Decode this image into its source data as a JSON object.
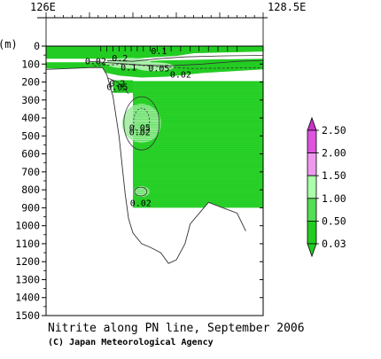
{
  "chart_data": {
    "type": "contour-section",
    "title": "Nitrite along PN line, September 2006",
    "credit": "(C) Japan Meteorological Agency",
    "x_range_labels": [
      "126E",
      "128.5E"
    ],
    "ylabel": "(m)",
    "ylim": [
      0,
      1500
    ],
    "y_ticks": [
      0,
      100,
      200,
      300,
      400,
      500,
      600,
      700,
      800,
      900,
      1000,
      1100,
      1200,
      1300,
      1400,
      1500
    ],
    "station_ticks_top": [
      126.63,
      126.7,
      126.77,
      126.84,
      126.91,
      126.98,
      127.05,
      127.12,
      127.2,
      127.28,
      127.36,
      127.44,
      127.55,
      127.66,
      127.76,
      127.87,
      127.98,
      128.09,
      128.2
    ],
    "contours": [
      {
        "label": "0.1",
        "x": 127.3,
        "depth": 45
      },
      {
        "label": "0.02",
        "x": 126.57,
        "depth": 100
      },
      {
        "label": "0.1",
        "x": 126.95,
        "depth": 135
      },
      {
        "label": "0.2",
        "x": 126.85,
        "depth": 85
      },
      {
        "label": "0.05",
        "x": 127.3,
        "depth": 140
      },
      {
        "label": "0.02",
        "x": 127.55,
        "depth": 175
      },
      {
        "label": "0.2",
        "x": 126.82,
        "depth": 225
      },
      {
        "label": "0.05",
        "x": 126.82,
        "depth": 245
      },
      {
        "label": "0.05",
        "x": 127.08,
        "depth": 470
      },
      {
        "label": "0.02",
        "x": 127.08,
        "depth": 495
      },
      {
        "label": "0.02",
        "x": 127.09,
        "depth": 890
      }
    ],
    "bottom_topography": [
      {
        "x": 126.0,
        "depth": 130
      },
      {
        "x": 126.5,
        "depth": 120
      },
      {
        "x": 126.65,
        "depth": 120
      },
      {
        "x": 126.7,
        "depth": 160
      },
      {
        "x": 126.77,
        "depth": 280
      },
      {
        "x": 126.84,
        "depth": 500
      },
      {
        "x": 126.91,
        "depth": 820
      },
      {
        "x": 126.95,
        "depth": 960
      },
      {
        "x": 127.0,
        "depth": 1040
      },
      {
        "x": 127.1,
        "depth": 1100
      },
      {
        "x": 127.2,
        "depth": 1120
      },
      {
        "x": 127.32,
        "depth": 1150
      },
      {
        "x": 127.41,
        "depth": 1210
      },
      {
        "x": 127.5,
        "depth": 1190
      },
      {
        "x": 127.6,
        "depth": 1100
      },
      {
        "x": 127.66,
        "depth": 990
      },
      {
        "x": 127.87,
        "depth": 870
      },
      {
        "x": 128.2,
        "depth": 930
      },
      {
        "x": 128.3,
        "depth": 1030
      }
    ],
    "colorbar": {
      "labels": [
        "2.50",
        "2.00",
        "1.50",
        "1.00",
        "0.50",
        "0.03"
      ],
      "colors": [
        "#cc33cc",
        "#dd55dd",
        "#ee99ee",
        "#aaffaa",
        "#55dd55",
        "#22cc22"
      ]
    }
  }
}
